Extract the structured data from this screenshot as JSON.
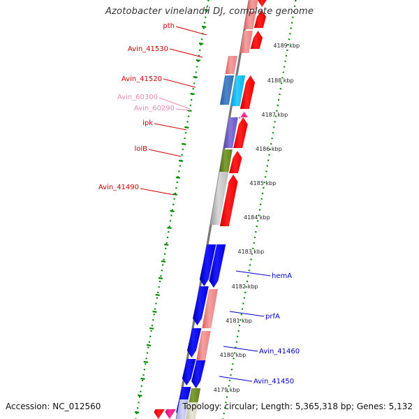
{
  "title": "Azotobacter vinelandii DJ, complete genome",
  "footer": {
    "accession": "Accession: NC_012560",
    "summary": "Topology: circular; Length: 5,365,318 bp; Genes: 5,132"
  },
  "ticks": [
    {
      "label": "4189 kbp"
    },
    {
      "label": "4188 kbp"
    },
    {
      "label": "4187 kbp"
    },
    {
      "label": "4186 kbp"
    },
    {
      "label": "4185 kbp"
    },
    {
      "label": "4184 kbp"
    },
    {
      "label": "4183 kbp"
    },
    {
      "label": "4182 kbp"
    },
    {
      "label": "4181 kbp"
    },
    {
      "label": "4180 kbp"
    },
    {
      "label": "4179 kbp"
    }
  ],
  "gene_labels": [
    {
      "name": "pth",
      "color": "#cc0000"
    },
    {
      "name": "Avin_41530",
      "color": "#cc0000"
    },
    {
      "name": "Avin_41520",
      "color": "#cc0000"
    },
    {
      "name": "Avin_60300",
      "color": "#ee88aa"
    },
    {
      "name": "Avin_60290",
      "color": "#ee88aa"
    },
    {
      "name": "ipk",
      "color": "#cc0000"
    },
    {
      "name": "lolB",
      "color": "#cc0000"
    },
    {
      "name": "Avin_41490",
      "color": "#cc0000"
    },
    {
      "name": "hemA",
      "color": "#0000cc"
    },
    {
      "name": "prfA",
      "color": "#0000cc"
    },
    {
      "name": "Avin_41460",
      "color": "#0000cc"
    },
    {
      "name": "Avin_41450",
      "color": "#0000cc"
    }
  ],
  "colors": {
    "forward_strand": "#ff0000",
    "reverse_strand": "#0000ee",
    "pseudogene": "#ff9999",
    "trna": "#ff66aa",
    "grey_feature": "#bbbbbb",
    "olive_feature": "#6b8e23",
    "purple_feature": "#7766cc",
    "dotted_ring": "#008800"
  }
}
